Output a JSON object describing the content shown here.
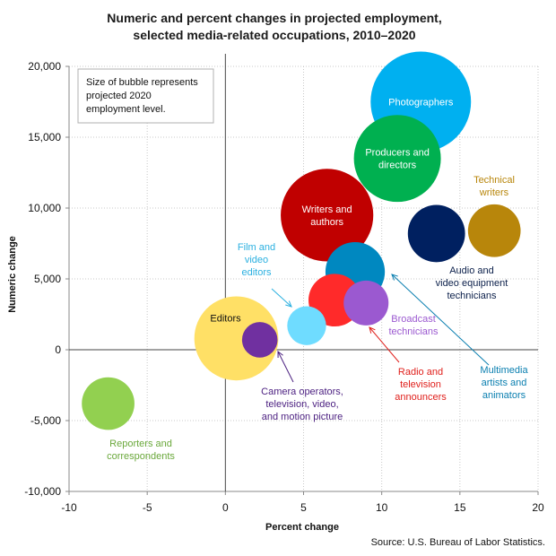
{
  "chart_data": {
    "type": "bubble",
    "title_lines": [
      "Numeric and percent changes in projected employment,",
      "selected media-related occupations, 2010–2020"
    ],
    "xlabel": "Percent change",
    "ylabel": "Numeric change",
    "xlim": [
      -10,
      20
    ],
    "ylim": [
      -10000,
      20000
    ],
    "x_ticks": [
      -10,
      -5,
      0,
      5,
      10,
      15,
      20
    ],
    "x_tick_labels": [
      "-10",
      "-5",
      "0",
      "5",
      "10",
      "15",
      "20"
    ],
    "y_ticks": [
      -10000,
      -5000,
      0,
      5000,
      10000,
      15000,
      20000
    ],
    "y_tick_labels": [
      "-10,000",
      "-5,000",
      "0",
      "5,000",
      "10,000",
      "15,000",
      "20,000"
    ],
    "grid": true,
    "note_lines": [
      "Size of bubble represents",
      "projected 2020",
      "employment level."
    ],
    "source": "Source: U.S. Bureau of Labor Statistics.",
    "series": [
      {
        "name": "Photographers",
        "x": 12.5,
        "y": 17500,
        "size": 40,
        "color": "#00b0f0",
        "label_lines": [
          "Photographers"
        ],
        "label_inside": true
      },
      {
        "name": "Producers and directors",
        "x": 11.0,
        "y": 13500,
        "size": 30,
        "color": "#00b050",
        "label_lines": [
          "Producers and",
          "directors"
        ],
        "label_inside": true
      },
      {
        "name": "Writers and authors",
        "x": 6.5,
        "y": 9500,
        "size": 34,
        "color": "#c00000",
        "label_lines": [
          "Writers and",
          "authors"
        ],
        "label_inside": true
      },
      {
        "name": "Technical writers",
        "x": 17.2,
        "y": 8400,
        "size": 11,
        "color": "#b8860b",
        "label_lines": [
          "Technical",
          "writers"
        ],
        "label_inside": false
      },
      {
        "name": "Audio and video equipment technicians",
        "x": 13.5,
        "y": 8200,
        "size": 13,
        "color": "#002060",
        "label_lines": [
          "Audio and",
          "video equipment",
          "technicians"
        ],
        "label_inside": false
      },
      {
        "name": "Multimedia artists and animators",
        "x": 8.3,
        "y": 5500,
        "size": 14,
        "color": "#0088c0",
        "label_lines": [
          "Multimedia",
          "artists and",
          "animators"
        ],
        "label_inside": false
      },
      {
        "name": "Radio and television announcers",
        "x": 7.0,
        "y": 3500,
        "size": 11,
        "color": "#ff2a2a",
        "label_lines": [
          "Radio and",
          "television",
          "announcers"
        ],
        "label_inside": false
      },
      {
        "name": "Broadcast technicians",
        "x": 9.0,
        "y": 3300,
        "size": 8,
        "color": "#9b59d0",
        "label_lines": [
          "Broadcast",
          "technicians"
        ],
        "label_inside": false
      },
      {
        "name": "Film and video editors",
        "x": 5.2,
        "y": 1700,
        "size": 6,
        "color": "#6fdcff",
        "label_lines": [
          "Film and",
          "video",
          "editors"
        ],
        "label_inside": false
      },
      {
        "name": "Editors",
        "x": 0.7,
        "y": 800,
        "size": 28,
        "color": "#ffe066",
        "label_lines": [
          "Editors"
        ],
        "label_inside": true
      },
      {
        "name": "Camera operators, television, video, and motion picture",
        "x": 2.2,
        "y": 700,
        "size": 5,
        "color": "#7030a0",
        "label_lines": [
          "Camera operators,",
          "television, video,",
          "and motion picture"
        ],
        "label_inside": false
      },
      {
        "name": "Reporters and correspondents",
        "x": -7.5,
        "y": -3800,
        "size": 11,
        "color": "#92d050",
        "label_lines": [
          "Reporters and",
          "correspondents"
        ],
        "label_inside": false
      }
    ]
  }
}
